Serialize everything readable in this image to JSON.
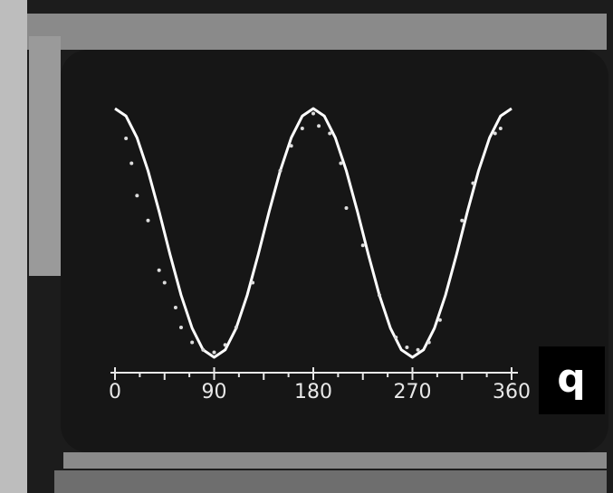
{
  "chart_data": [
    {
      "type": "line",
      "panel_label": "q",
      "color": "#ffffff",
      "x": [
        0,
        10,
        20,
        30,
        40,
        50,
        60,
        70,
        80,
        90,
        100,
        110,
        120,
        130,
        140,
        150,
        160,
        170,
        180,
        190,
        200,
        210,
        220,
        230,
        240,
        250,
        260,
        270,
        280,
        290,
        300,
        310,
        320,
        330,
        340,
        350,
        360
      ],
      "values": [
        1,
        0.97,
        0.883,
        0.75,
        0.587,
        0.413,
        0.25,
        0.117,
        0.03,
        0,
        0.03,
        0.117,
        0.25,
        0.413,
        0.587,
        0.75,
        0.883,
        0.97,
        1,
        0.97,
        0.883,
        0.75,
        0.587,
        0.413,
        0.25,
        0.117,
        0.03,
        0,
        0.03,
        0.117,
        0.25,
        0.413,
        0.587,
        0.75,
        0.883,
        0.97,
        1
      ],
      "xlim": [
        0,
        360
      ],
      "ylim": [
        0,
        1
      ],
      "xticks": [
        0,
        90,
        180,
        270,
        360
      ]
    },
    {
      "type": "scatter",
      "color": "#dddddd",
      "x": [
        10,
        15,
        20,
        30,
        40,
        45,
        55,
        60,
        70,
        80,
        90,
        100,
        110,
        125,
        150,
        160,
        170,
        180,
        185,
        195,
        205,
        210,
        225,
        240,
        255,
        265,
        275,
        285,
        295,
        315,
        325,
        345,
        350
      ],
      "values": [
        0.88,
        0.78,
        0.65,
        0.55,
        0.35,
        0.3,
        0.2,
        0.12,
        0.06,
        0.03,
        0.02,
        0.05,
        0.12,
        0.3,
        0.75,
        0.85,
        0.92,
        0.98,
        0.93,
        0.9,
        0.78,
        0.6,
        0.45,
        0.25,
        0.08,
        0.04,
        0.03,
        0.06,
        0.15,
        0.55,
        0.7,
        0.9,
        0.92
      ],
      "xlim": [
        0,
        360
      ],
      "ylim": [
        0,
        1
      ]
    }
  ]
}
